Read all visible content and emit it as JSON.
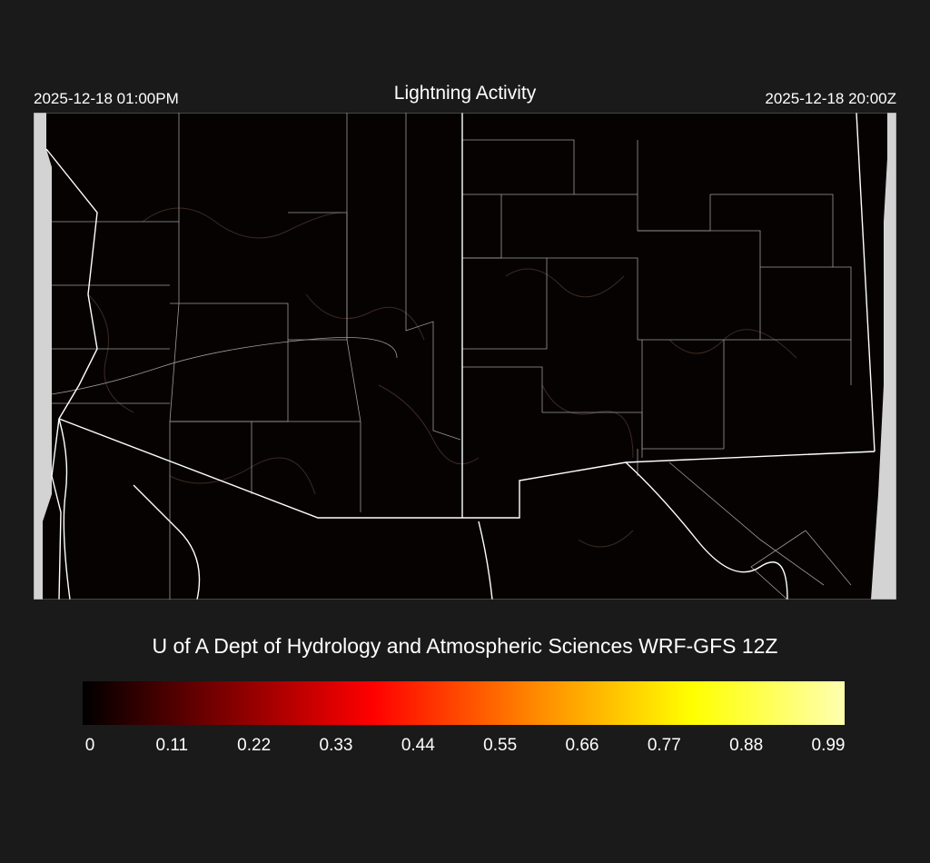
{
  "header": {
    "title": "Lightning Activity",
    "local_time": "2025-12-18 01:00PM",
    "utc_time": "2025-12-18 20:00Z"
  },
  "map": {
    "region": "Arizona / New Mexico / Southwest US",
    "background_color": "#070202",
    "border_color": "#ffffff",
    "county_line_color": "#9a9a9a",
    "terrain_contour_color": "#3a2a22",
    "out_of_domain_color": "#d3d3d3"
  },
  "footer": {
    "credit": "U of A Dept of Hydrology and Atmospheric Sciences WRF-GFS 12Z"
  },
  "colorbar": {
    "colormap": "hot",
    "colors": [
      "#000000",
      "#ff0000",
      "#ff8c00",
      "#ffff00",
      "#ffffb0"
    ],
    "ticks": [
      "0",
      "0.11",
      "0.22",
      "0.33",
      "0.44",
      "0.55",
      "0.66",
      "0.77",
      "0.88",
      "0.99"
    ],
    "range": [
      0,
      0.99
    ]
  }
}
